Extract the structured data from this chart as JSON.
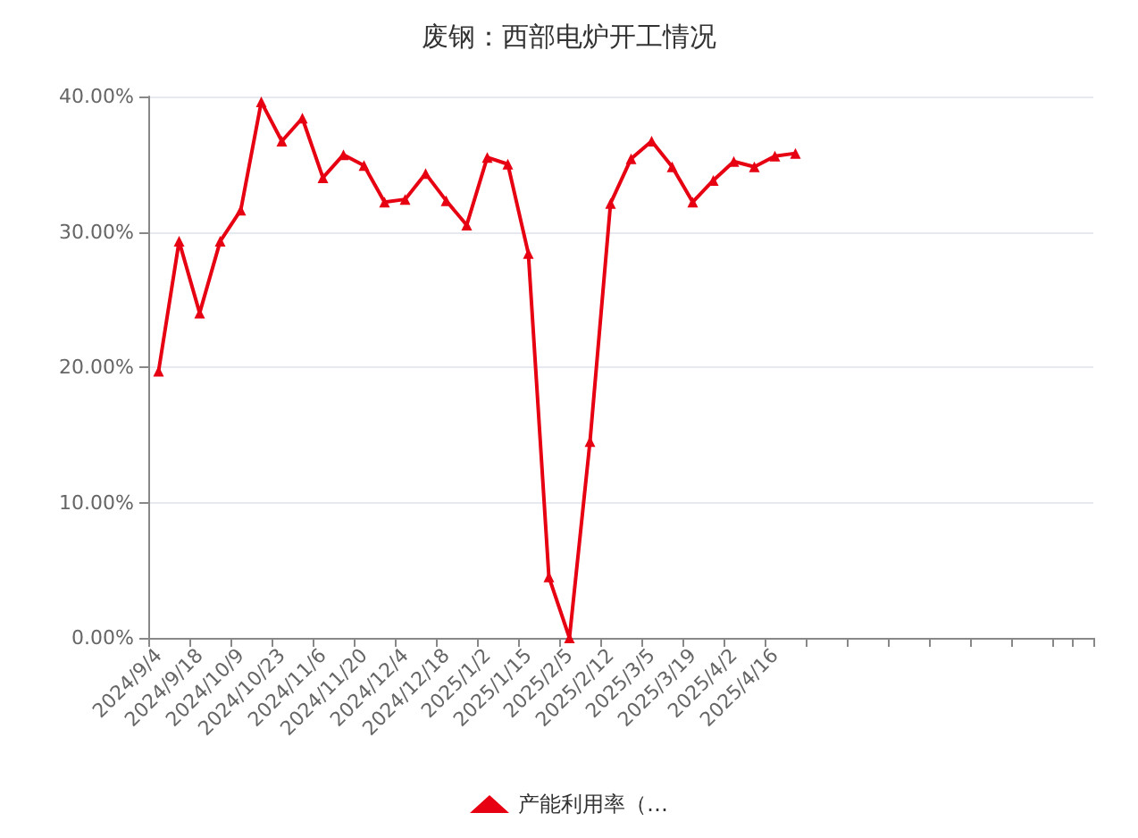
{
  "chart_data": {
    "type": "line",
    "title": "废钢：西部电炉开工情况",
    "categories": [
      "2024/9/4",
      null,
      "2024/9/18",
      null,
      "2024/10/9",
      null,
      "2024/10/23",
      null,
      "2024/11/6",
      null,
      "2024/11/20",
      null,
      "2024/12/4",
      null,
      "2024/12/18",
      null,
      "2025/1/2",
      null,
      "2025/1/15",
      null,
      "2025/2/5",
      null,
      "2025/2/12",
      null,
      "2025/3/5",
      null,
      "2025/3/19",
      null,
      "2025/4/2",
      null,
      "2025/4/16",
      null,
      null,
      null,
      null,
      null,
      null,
      null,
      null,
      null,
      null,
      null,
      null,
      null,
      null,
      null
    ],
    "series": [
      {
        "name": "产能利用率（…",
        "color": "#e60012",
        "values": [
          19.7,
          29.3,
          24.0,
          29.3,
          31.6,
          39.6,
          36.7,
          38.4,
          34.0,
          35.7,
          34.9,
          32.2,
          32.4,
          34.3,
          32.3,
          30.5,
          35.5,
          35.0,
          28.4,
          4.5,
          0,
          14.5,
          32.1,
          35.4,
          36.7,
          34.8,
          32.2,
          33.8,
          35.2,
          34.8,
          35.6,
          35.8,
          null,
          null,
          null,
          null,
          null,
          null,
          null,
          null,
          null,
          null,
          null,
          null,
          null,
          null
        ]
      }
    ],
    "ylim": [
      0,
      40
    ],
    "yticks": [
      {
        "value": 0,
        "label": "0.00%"
      },
      {
        "value": 10,
        "label": "10.00%"
      },
      {
        "value": 20,
        "label": "20.00%"
      },
      {
        "value": 30,
        "label": "30.00%"
      },
      {
        "value": 40,
        "label": "40.00%"
      }
    ],
    "grid": "y",
    "legend": "bottom",
    "marker": "triangle",
    "line_style": "solid"
  }
}
